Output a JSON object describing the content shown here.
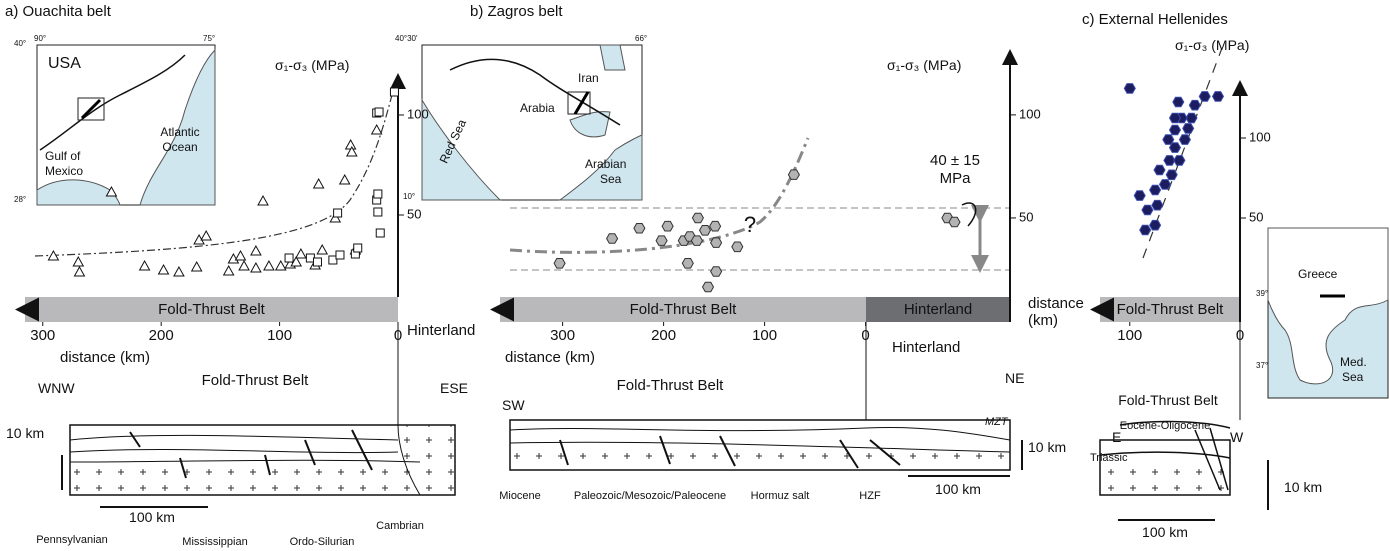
{
  "chart_data": [
    {
      "type": "scatter",
      "title": "a) Ouachita belt",
      "y_label": "σ₁-σ₃ (MPa)",
      "x_label": "distance (km)",
      "bar_labels": [
        "Fold-Thrust Belt"
      ],
      "xlim": [
        315,
        0
      ],
      "xticks": [
        300,
        200,
        100,
        0
      ],
      "ylim": [
        0,
        120
      ],
      "yticks": [
        50,
        100
      ],
      "series": [
        {
          "marker": "triangle",
          "color": "#ffffff",
          "x": [
            291,
            270,
            269,
            242,
            214,
            198,
            185,
            168,
            162,
            170,
            143,
            139,
            133,
            130,
            120,
            114,
            120,
            109,
            99,
            91,
            86,
            82,
            70,
            64,
            67,
            53,
            45,
            40,
            39,
            36,
            18
          ],
          "values": [
            29.5,
            26.5,
            21.5,
            61.5,
            24.5,
            22.5,
            21.5,
            37.5,
            39.5,
            24,
            22,
            28,
            29.5,
            24.5,
            32,
            57,
            23.5,
            24.5,
            24.5,
            25.5,
            26.5,
            30.5,
            25,
            32.5,
            65.5,
            48.5,
            67.5,
            85,
            81.5,
            32.5,
            92.5
          ]
        },
        {
          "marker": "square",
          "color": "#ffffff",
          "x": [
            92,
            74,
            68,
            55,
            49,
            51,
            36,
            34,
            17,
            18,
            15,
            17,
            18,
            16,
            3
          ],
          "values": [
            28.5,
            28.5,
            26.5,
            27.5,
            30,
            51,
            30.5,
            33.5,
            51.5,
            57.5,
            41,
            60.5,
            101,
            101.5,
            111.5
          ]
        }
      ],
      "annotations": [
        "USA",
        "Atlantic",
        "Ocean",
        "Gulf of",
        "Mexico",
        "40°",
        "90°",
        "75°",
        "28°",
        "Hinterland",
        "WNW",
        "Fold-Thrust Belt",
        "ESE",
        "10 km",
        "100 km",
        "Pennsylvanian",
        "Mississippian",
        "Ordo-Silurian",
        "Cambrian"
      ]
    },
    {
      "type": "scatter",
      "title": "b) Zagros belt",
      "y_label": "σ₁-σ₃ (MPa)",
      "x_label": "distance (km)",
      "bar_labels": [
        "Fold-Thrust Belt",
        "Hinterland"
      ],
      "xlim": [
        362,
        -143
      ],
      "xticks": [
        300,
        200,
        100,
        0
      ],
      "ylim": [
        0,
        131
      ],
      "yticks": [
        50,
        100
      ],
      "series": [
        {
          "marker": "hexagon",
          "color": "#b3b3b3",
          "x": [
            303,
            251,
            224,
            202,
            196,
            180,
            174,
            167,
            176,
            166,
            159,
            149,
            148,
            148,
            127,
            156,
            71,
            -81,
            -88
          ],
          "values": [
            28,
            40,
            45,
            39,
            46,
            39,
            41,
            39,
            28,
            50,
            44,
            46,
            38,
            24,
            36,
            16.5,
            71,
            50,
            48
          ]
        }
      ],
      "annotations": [
        "Iran",
        "Arabia",
        "Red Sea",
        "Arabian",
        "Sea",
        "40°30'",
        "66°",
        "10°",
        "?",
        "40 ± 15",
        "MPa",
        "Hinterland",
        "SW",
        "Fold-Thrust Belt",
        "NE",
        "MZT",
        "10 km",
        "100 km",
        "Miocene",
        "Paleozoic/Mesozoic/Paleocene",
        "Hormuz salt",
        "HZF"
      ]
    },
    {
      "type": "scatter",
      "title": "c) External Hellenides",
      "y_label": "σ₁-σ₃ (MPa)",
      "x_label": "distance (km)",
      "bar_labels": [
        "Fold-Thrust Belt"
      ],
      "xlim": [
        127,
        0
      ],
      "xticks": [
        100,
        0
      ],
      "ylim": [
        0,
        135
      ],
      "yticks": [
        50,
        100
      ],
      "series": [
        {
          "marker": "hexagon",
          "color": "#1c1c5e",
          "x": [
            100,
            32,
            20,
            56,
            41,
            44,
            53,
            59,
            47,
            65,
            59,
            50,
            64,
            55,
            62,
            73,
            68,
            77,
            75,
            84,
            77,
            86,
            59,
            91
          ],
          "values": [
            131,
            126,
            126,
            122.5,
            120.5,
            112.5,
            112.5,
            105,
            106,
            99,
            94,
            99,
            86,
            86,
            77,
            80,
            71,
            67.5,
            58,
            55,
            45.5,
            42.5,
            112.5,
            64
          ]
        }
      ],
      "annotations": [
        "Greece",
        "Med.",
        "Sea",
        "39°",
        "37°",
        "Fold-Thrust Belt",
        "Eocene-Oligocene",
        "E",
        "W",
        "Triassic",
        "10 km",
        "100 km"
      ]
    }
  ]
}
